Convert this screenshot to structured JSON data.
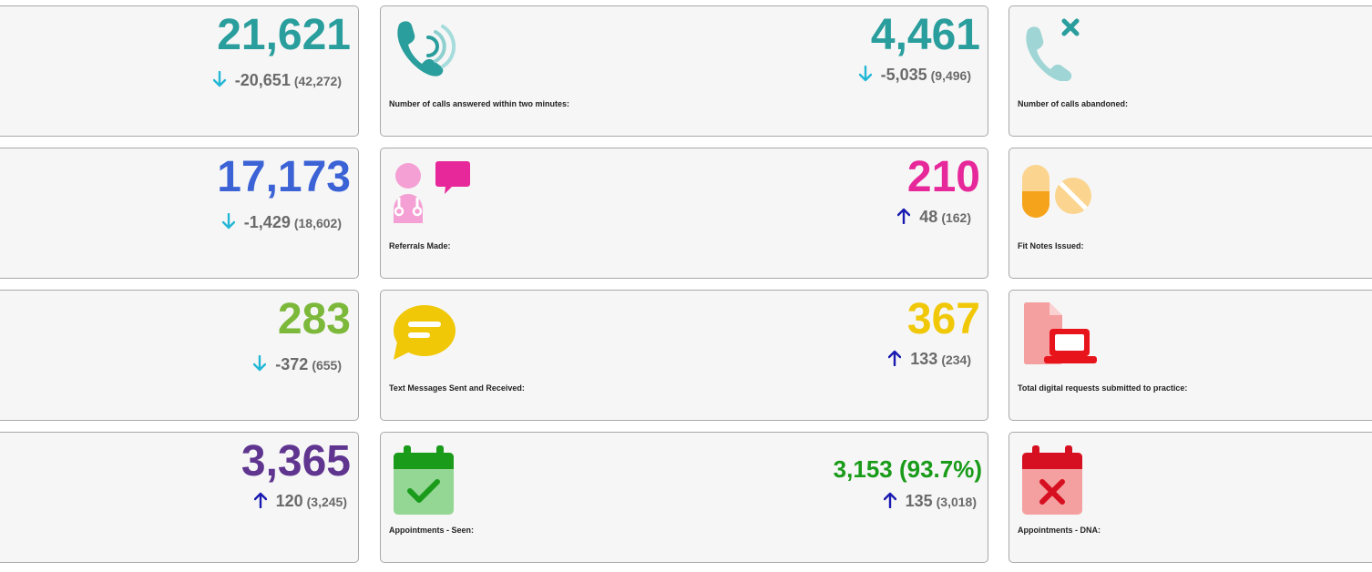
{
  "colors": {
    "teal": "#2a9d9d",
    "blue": "#3b63d6",
    "green": "#7cb83a",
    "purple": "#5f3590",
    "magenta": "#e6289a",
    "yellow": "#f0c808",
    "dark_green": "#1a9b1a",
    "arrow_down": "#23b7d6",
    "arrow_up": "#1a1ab3"
  },
  "left_column": [
    {
      "value": "21,621",
      "change": "-20,651",
      "previous": "(42,272)",
      "direction": "down"
    },
    {
      "value": "17,173",
      "change": "-1,429",
      "previous": "(18,602)",
      "direction": "down"
    },
    {
      "value": "283",
      "change": "-372",
      "previous": "(655)",
      "direction": "down"
    },
    {
      "value": "3,365",
      "change": "120",
      "previous": "(3,245)",
      "direction": "up"
    }
  ],
  "middle_column": [
    {
      "label": "Number of calls answered within two minutes:",
      "icon": "phone-ringing-icon",
      "value": "4,461",
      "change": "-5,035",
      "previous": "(9,496)",
      "direction": "down"
    },
    {
      "label": "Referrals Made:",
      "icon": "doctor-chat-icon",
      "value": "210",
      "change": "48",
      "previous": "(162)",
      "direction": "up"
    },
    {
      "label": "Text Messages Sent and Received:",
      "icon": "message-bubble-icon",
      "value": "367",
      "change": "133",
      "previous": "(234)",
      "direction": "up"
    },
    {
      "label": "Appointments - Seen:",
      "icon": "calendar-check-icon",
      "value": "3,153 (93.7%)",
      "change": "135",
      "previous": "(3,018)",
      "direction": "up"
    }
  ],
  "right_column": [
    {
      "label": "Number of calls abandoned:",
      "icon": "phone-missed-icon"
    },
    {
      "label": "Fit Notes Issued:",
      "icon": "pills-icon"
    },
    {
      "label": "Total digital requests submitted to practice:",
      "icon": "digital-request-icon"
    },
    {
      "label": "Appointments - DNA:",
      "icon": "calendar-cross-icon"
    }
  ]
}
